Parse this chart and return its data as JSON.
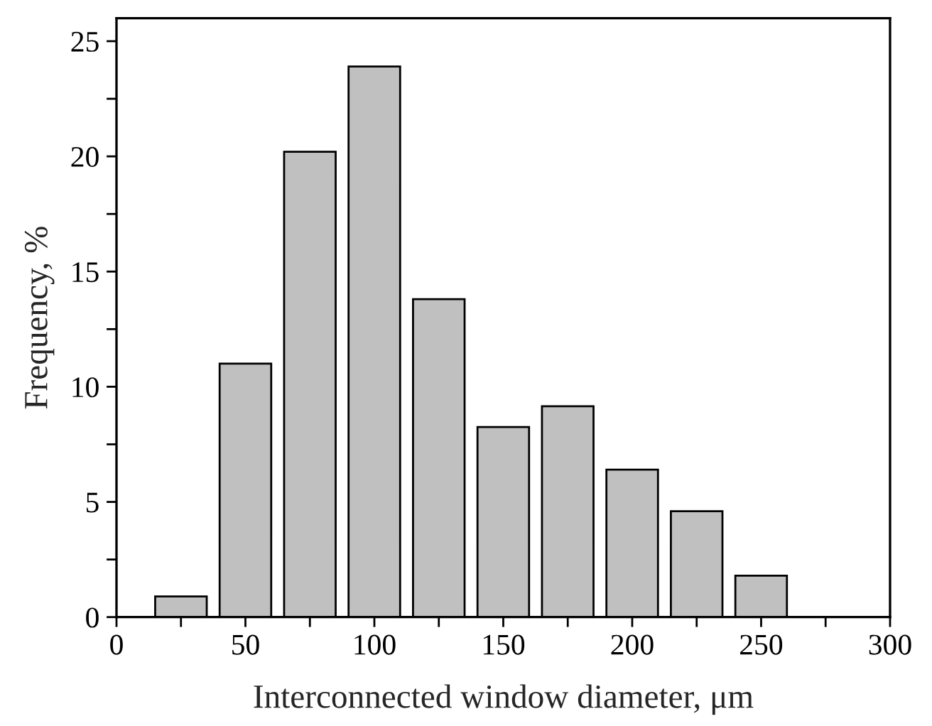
{
  "chart_data": {
    "type": "bar",
    "xlabel": "Interconnected window diameter, μm",
    "ylabel": "Frequency, %",
    "x": [
      25,
      50,
      75,
      100,
      125,
      150,
      175,
      200,
      225,
      250
    ],
    "series": [
      {
        "color": "#c0c0c0",
        "values": [
          0.9,
          11.0,
          20.2,
          23.9,
          13.8,
          8.25,
          9.15,
          6.4,
          4.6,
          1.8
        ]
      }
    ],
    "xlim": [
      0,
      300
    ],
    "xticks": [
      0,
      {
        "value": 25,
        "label": null
      },
      50,
      {
        "value": 75,
        "label": null
      },
      100,
      {
        "value": 125,
        "label": null
      },
      150,
      {
        "value": 175,
        "label": null
      },
      200,
      {
        "value": 225,
        "label": null
      },
      250,
      {
        "value": 275,
        "label": null
      },
      300
    ],
    "ylim": [
      0,
      26
    ],
    "yticks": [
      0,
      {
        "value": 2.5,
        "label": null
      },
      5,
      {
        "value": 7.5,
        "label": null
      },
      10,
      {
        "value": 12.5,
        "label": null
      },
      15,
      {
        "value": 17.5,
        "label": null
      },
      20,
      {
        "value": 22.5,
        "label": null
      },
      25
    ],
    "grid": false,
    "legend": false
  }
}
